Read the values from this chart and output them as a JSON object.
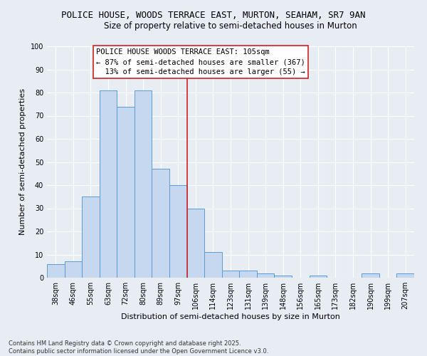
{
  "title": "POLICE HOUSE, WOODS TERRACE EAST, MURTON, SEAHAM, SR7 9AN",
  "subtitle": "Size of property relative to semi-detached houses in Murton",
  "xlabel": "Distribution of semi-detached houses by size in Murton",
  "ylabel": "Number of semi-detached properties",
  "categories": [
    "38sqm",
    "46sqm",
    "55sqm",
    "63sqm",
    "72sqm",
    "80sqm",
    "89sqm",
    "97sqm",
    "106sqm",
    "114sqm",
    "123sqm",
    "131sqm",
    "139sqm",
    "148sqm",
    "156sqm",
    "165sqm",
    "173sqm",
    "182sqm",
    "190sqm",
    "199sqm",
    "207sqm"
  ],
  "values": [
    6,
    7,
    35,
    81,
    74,
    81,
    47,
    40,
    30,
    11,
    3,
    3,
    2,
    1,
    0,
    1,
    0,
    0,
    2,
    0,
    2
  ],
  "bar_color": "#c5d8f0",
  "bar_edge_color": "#5b9bd5",
  "background_color": "#e8edf4",
  "grid_color": "#ffffff",
  "property_line_index": 8,
  "annotation_text": "POLICE HOUSE WOODS TERRACE EAST: 105sqm\n← 87% of semi-detached houses are smaller (367)\n  13% of semi-detached houses are larger (55) →",
  "annotation_box_color": "#ffffff",
  "annotation_border_color": "#cc2222",
  "ylim": [
    0,
    100
  ],
  "yticks": [
    0,
    10,
    20,
    30,
    40,
    50,
    60,
    70,
    80,
    90,
    100
  ],
  "footer_text": "Contains HM Land Registry data © Crown copyright and database right 2025.\nContains public sector information licensed under the Open Government Licence v3.0.",
  "title_fontsize": 9,
  "subtitle_fontsize": 8.5,
  "xlabel_fontsize": 8,
  "ylabel_fontsize": 8,
  "tick_fontsize": 7,
  "annotation_fontsize": 7.5,
  "footer_fontsize": 6
}
